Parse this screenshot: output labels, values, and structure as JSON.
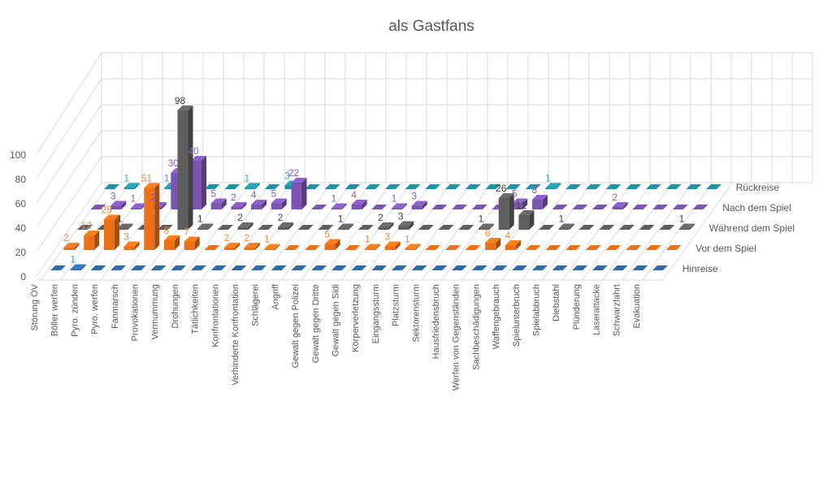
{
  "chart_data": {
    "type": "bar",
    "variant": "3d-column",
    "title": "als Gastfans",
    "xlabel": "",
    "ylabel": "",
    "ylim": [
      0,
      100
    ],
    "yticks": [
      0,
      20,
      40,
      60,
      80,
      100
    ],
    "grid": true,
    "legend": "right (depth-axis labels)",
    "categories": [
      "Störung ÖV",
      "Böller werfen",
      "Pyro. zünden",
      "Pyro. werfen",
      "Fanmarsch",
      "Provokationen",
      "Vermummung",
      "Drohungen",
      "Tätlichkeiten",
      "Konfrontationen",
      "Verhinderte Konfrontation",
      "Schlägerei",
      "Angriff",
      "Gewalt gegen Polizei",
      "Gewalt gegen Dritte",
      "Gewalt gegen Sidi",
      "Körperverletzung",
      "Eingangssturm",
      "Platzsturm",
      "Sektorensturm",
      "Hausfriedensbruch",
      "Werfen von Gegenständen",
      "Sachbeschädigungen",
      "Waffengebrauch",
      "Spielunterbruch",
      "Spielabbruch",
      "Diebstahl",
      "Plünderung",
      "Laserattacke",
      "Schwarzfahrt",
      "Evakuation"
    ],
    "series": [
      {
        "name": "Hinreise",
        "color": "#2e6ca8",
        "label_color": "#2aa0c8",
        "values": [
          0,
          1,
          0,
          0,
          0,
          0,
          0,
          0,
          0,
          0,
          0,
          0,
          0,
          0,
          0,
          0,
          0,
          0,
          0,
          0,
          0,
          0,
          0,
          0,
          0,
          0,
          0,
          0,
          0,
          0,
          0
        ]
      },
      {
        "name": "Vor dem Spiel",
        "color": "#ec7018",
        "label_color": "#ec8a3c",
        "values": [
          2,
          12,
          25,
          3,
          51,
          8,
          7,
          0,
          2,
          2,
          1,
          0,
          0,
          5,
          0,
          1,
          3,
          1,
          0,
          0,
          0,
          6,
          4,
          0,
          0,
          0,
          0,
          0,
          0,
          0,
          0
        ]
      },
      {
        "name": "Während dem Spiel",
        "color": "#5e5e5e",
        "label_color": "#404040",
        "values": [
          0,
          0,
          1,
          0,
          0,
          98,
          1,
          0,
          2,
          0,
          2,
          0,
          0,
          1,
          0,
          2,
          3,
          0,
          0,
          0,
          1,
          26,
          12,
          0,
          1,
          0,
          0,
          0,
          0,
          0,
          1
        ]
      },
      {
        "name": "Nach dem Spiel",
        "color": "#7c55b2",
        "label_color": "#8a5cc0",
        "values": [
          0,
          3,
          1,
          2,
          30,
          40,
          5,
          2,
          4,
          5,
          22,
          0,
          1,
          4,
          0,
          1,
          3,
          0,
          0,
          0,
          0,
          5,
          8,
          0,
          0,
          0,
          2,
          0,
          0,
          0,
          0
        ]
      },
      {
        "name": "Rückreise",
        "color": "#1f93a8",
        "label_color": "#2aa8d0",
        "values": [
          0,
          1,
          0,
          1,
          0,
          0,
          0,
          1,
          0,
          3,
          0,
          0,
          0,
          0,
          0,
          0,
          0,
          0,
          0,
          0,
          0,
          0,
          1,
          0,
          0,
          0,
          0,
          0,
          0,
          0,
          0
        ]
      }
    ]
  }
}
